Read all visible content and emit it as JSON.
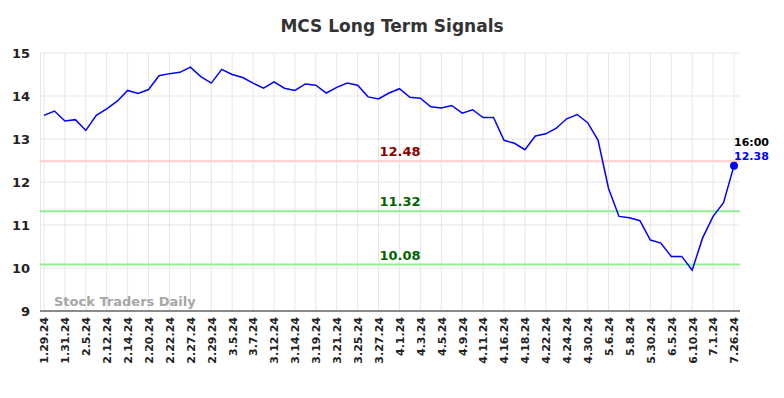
{
  "chart_data": {
    "type": "line",
    "title": "MCS Long Term Signals",
    "watermark": "Stock Traders Daily",
    "categories": [
      "1.29.24",
      null,
      "1.31.24",
      null,
      "2.5.24",
      null,
      "2.12.24",
      null,
      "2.14.24",
      null,
      "2.20.24",
      null,
      "2.22.24",
      null,
      "2.27.24",
      null,
      "2.29.24",
      null,
      "3.5.24",
      null,
      "3.7.24",
      null,
      "3.12.24",
      null,
      "3.14.24",
      null,
      "3.19.24",
      null,
      "3.21.24",
      null,
      "3.25.24",
      null,
      "3.27.24",
      null,
      "4.1.24",
      null,
      "4.3.24",
      null,
      "4.5.24",
      null,
      "4.9.24",
      null,
      "4.11.24",
      null,
      "4.16.24",
      null,
      "4.18.24",
      null,
      "4.22.24",
      null,
      "4.24.24",
      null,
      "4.30.24",
      null,
      "5.6.24",
      null,
      "5.8.24",
      null,
      "5.30.24",
      null,
      "6.5.24",
      null,
      "6.10.24",
      null,
      "7.1.24",
      null,
      "7.26.24"
    ],
    "series": [
      {
        "name": "MCS",
        "color": "#0000ff",
        "values": [
          13.55,
          13.65,
          13.42,
          13.45,
          13.2,
          13.55,
          13.7,
          13.88,
          14.13,
          14.06,
          14.15,
          14.47,
          14.52,
          14.55,
          14.67,
          14.45,
          14.3,
          14.62,
          14.5,
          14.43,
          14.3,
          14.18,
          14.33,
          14.18,
          14.13,
          14.28,
          14.25,
          14.07,
          14.2,
          14.3,
          14.25,
          13.98,
          13.93,
          14.07,
          14.17,
          13.97,
          13.95,
          13.75,
          13.72,
          13.78,
          13.6,
          13.68,
          13.5,
          13.5,
          12.97,
          12.9,
          12.75,
          13.07,
          13.12,
          13.25,
          13.47,
          13.57,
          13.38,
          12.97,
          11.85,
          11.2,
          11.17,
          11.1,
          10.65,
          10.58,
          10.27,
          10.27,
          9.95,
          10.7,
          11.2,
          11.52,
          12.38
        ]
      }
    ],
    "last_point_annotation": "16:00",
    "reference_lines": [
      {
        "value": 12.48,
        "color": "#ffcccc",
        "label_color": "#8b0000"
      },
      {
        "value": 11.32,
        "color": "#90ee90",
        "label_color": "#006400"
      },
      {
        "value": 10.08,
        "color": "#90ee90",
        "label_color": "#006400"
      }
    ],
    "ylim": [
      9,
      15
    ],
    "yticks": [
      9,
      10,
      11,
      12,
      13,
      14,
      15
    ],
    "grid": true
  }
}
